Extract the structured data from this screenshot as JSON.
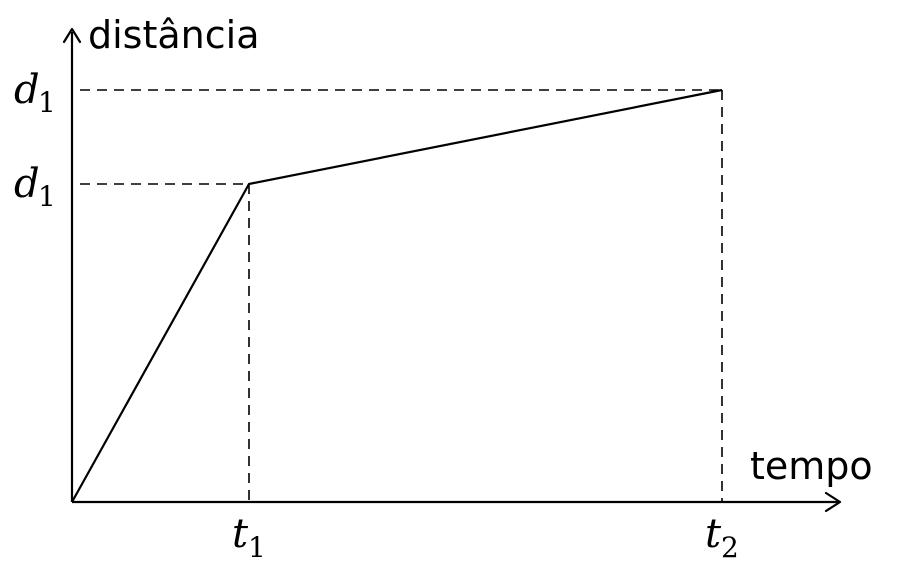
{
  "axes": {
    "y_label": "distância",
    "x_label": "tempo"
  },
  "y_ticks": [
    {
      "base": "d",
      "sub": "1"
    },
    {
      "base": "d",
      "sub": "1"
    }
  ],
  "x_ticks": [
    {
      "base": "t",
      "sub": "1"
    },
    {
      "base": "t",
      "sub": "2"
    }
  ],
  "colors": {
    "stroke": "#000000",
    "background": "#ffffff"
  }
}
